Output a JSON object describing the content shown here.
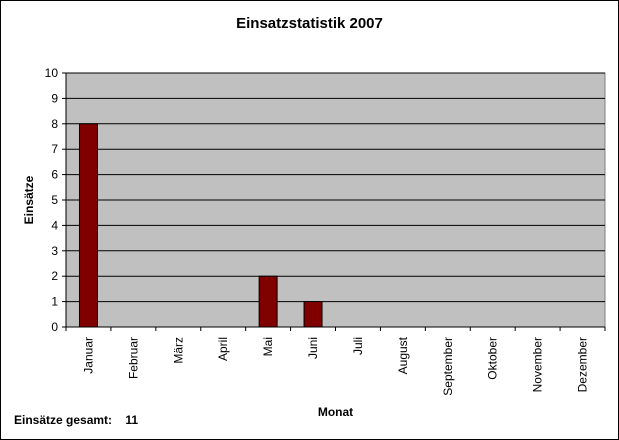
{
  "chart_data": {
    "type": "bar",
    "title": "Einsatzstatistik 2007",
    "xlabel": "Monat",
    "ylabel": "Einsätze",
    "categories": [
      "Januar",
      "Februar",
      "März",
      "April",
      "Mai",
      "Juni",
      "Juli",
      "August",
      "September",
      "Oktober",
      "November",
      "Dezember"
    ],
    "values": [
      8,
      0,
      0,
      0,
      2,
      1,
      0,
      0,
      0,
      0,
      0,
      0
    ],
    "ylim": [
      0,
      10
    ],
    "yticks": [
      "0",
      "1",
      "2",
      "3",
      "4",
      "5",
      "6",
      "7",
      "8",
      "9",
      "10"
    ],
    "grid": true,
    "legend": "none",
    "bar_color": "#800000",
    "plot_background": "#C0C0C0"
  },
  "footer": {
    "label": "Einsätze gesamt:",
    "value": "11"
  }
}
